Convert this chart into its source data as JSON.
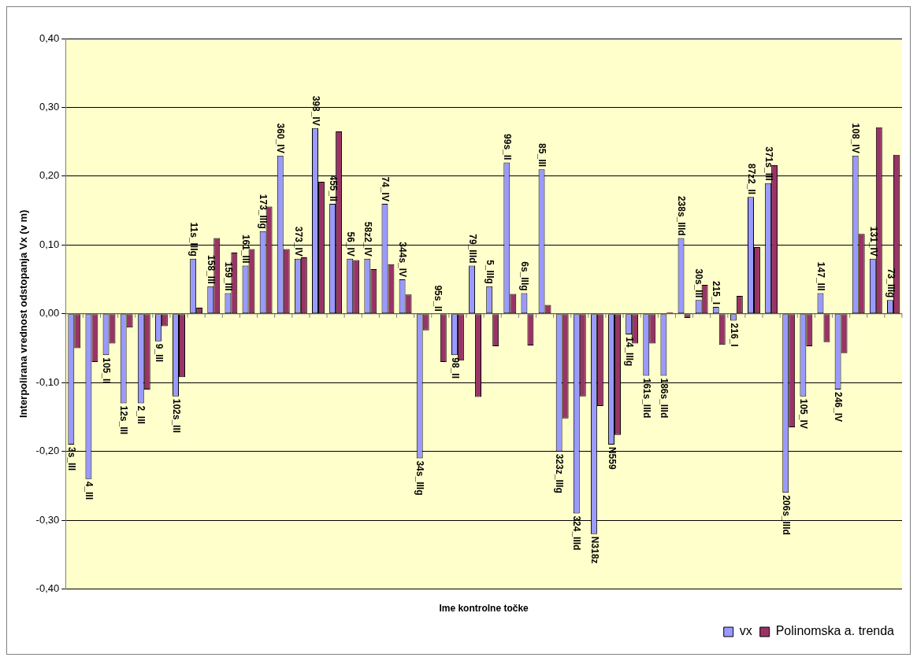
{
  "chart_data": {
    "type": "bar",
    "xlabel": "Ime kontrolne točke",
    "ylabel": "Interpolirana vrednost odstopanja Vx (v m)",
    "categories": [
      "3s_III",
      "4_III",
      "105_II",
      "12s_III",
      "2_III",
      "9_III",
      "102s_III",
      "11s_IIIg",
      "158_III",
      "159_III",
      "161_III",
      "173_IIIg",
      "360_IV",
      "373_IV",
      "398_IV",
      "455_II",
      "56_IV",
      "58z2_IV",
      "74_IV",
      "344s_IV",
      "34s_IIIg",
      "95s_II",
      "98_II",
      "79_IIId",
      "5_IIIg",
      "99s_II",
      "6s_IIIg",
      "85_III",
      "323z_IIIg",
      "324_IIId",
      "N318z",
      "N559",
      "14_IIIg",
      "161s_IIId",
      "186s_IIId",
      "238s_IIId",
      "30s_III",
      "215_I",
      "216_I",
      "87z2_II",
      "371s_III",
      "206s_IIId",
      "105_IV",
      "147_III",
      "246_IV",
      "108_IV",
      "131_IV",
      "73_IIIg"
    ],
    "series": [
      {
        "name": "vx",
        "color": "#9999ff",
        "values": [
          -0.19,
          -0.24,
          -0.06,
          -0.13,
          -0.13,
          -0.04,
          -0.12,
          0.08,
          0.04,
          0.03,
          0.07,
          0.12,
          0.23,
          0.08,
          0.27,
          0.16,
          0.08,
          0.08,
          0.16,
          0.05,
          -0.21,
          0,
          -0.06,
          0.07,
          0.04,
          0.22,
          0.03,
          0.21,
          -0.2,
          -0.29,
          -0.32,
          -0.19,
          -0.03,
          -0.09,
          -0.09,
          0.11,
          0.02,
          0.01,
          -0.01,
          0.17,
          0.19,
          -0.26,
          -0.12,
          0.03,
          -0.11,
          0.23,
          0.08,
          0.02
        ]
      },
      {
        "name": "Polinomska a. trenda",
        "color": "#993366",
        "values": [
          -0.05,
          -0.07,
          -0.043,
          -0.02,
          -0.11,
          -0.018,
          -0.092,
          0.009,
          0.11,
          0.089,
          0.094,
          0.156,
          0.094,
          0.082,
          0.192,
          0.265,
          0.078,
          0.065,
          0.072,
          0.028,
          -0.024,
          -0.07,
          -0.068,
          -0.121,
          -0.047,
          0.029,
          -0.046,
          0.013,
          -0.152,
          -0.12,
          -0.134,
          -0.176,
          -0.043,
          -0.043,
          0.002,
          -0.006,
          0.042,
          -0.045,
          0.026,
          0.097,
          0.216,
          -0.165,
          -0.047,
          -0.041,
          -0.057,
          0.116,
          0.271,
          0.231
        ]
      }
    ],
    "ylim": [
      -0.4,
      0.4
    ],
    "yticks": [
      {
        "value": -0.4,
        "label": "-0,40"
      },
      {
        "value": -0.3,
        "label": "-0,30"
      },
      {
        "value": -0.2,
        "label": "-0,20"
      },
      {
        "value": -0.1,
        "label": "-0,10"
      },
      {
        "value": 0,
        "label": "0,00"
      },
      {
        "value": 0.1,
        "label": "0,10"
      },
      {
        "value": 0.2,
        "label": "0,20"
      },
      {
        "value": 0.3,
        "label": "0,30"
      },
      {
        "value": 0.4,
        "label": "0,40"
      }
    ],
    "tick_labels": "y",
    "grid": "y",
    "legend": "bottom right"
  }
}
